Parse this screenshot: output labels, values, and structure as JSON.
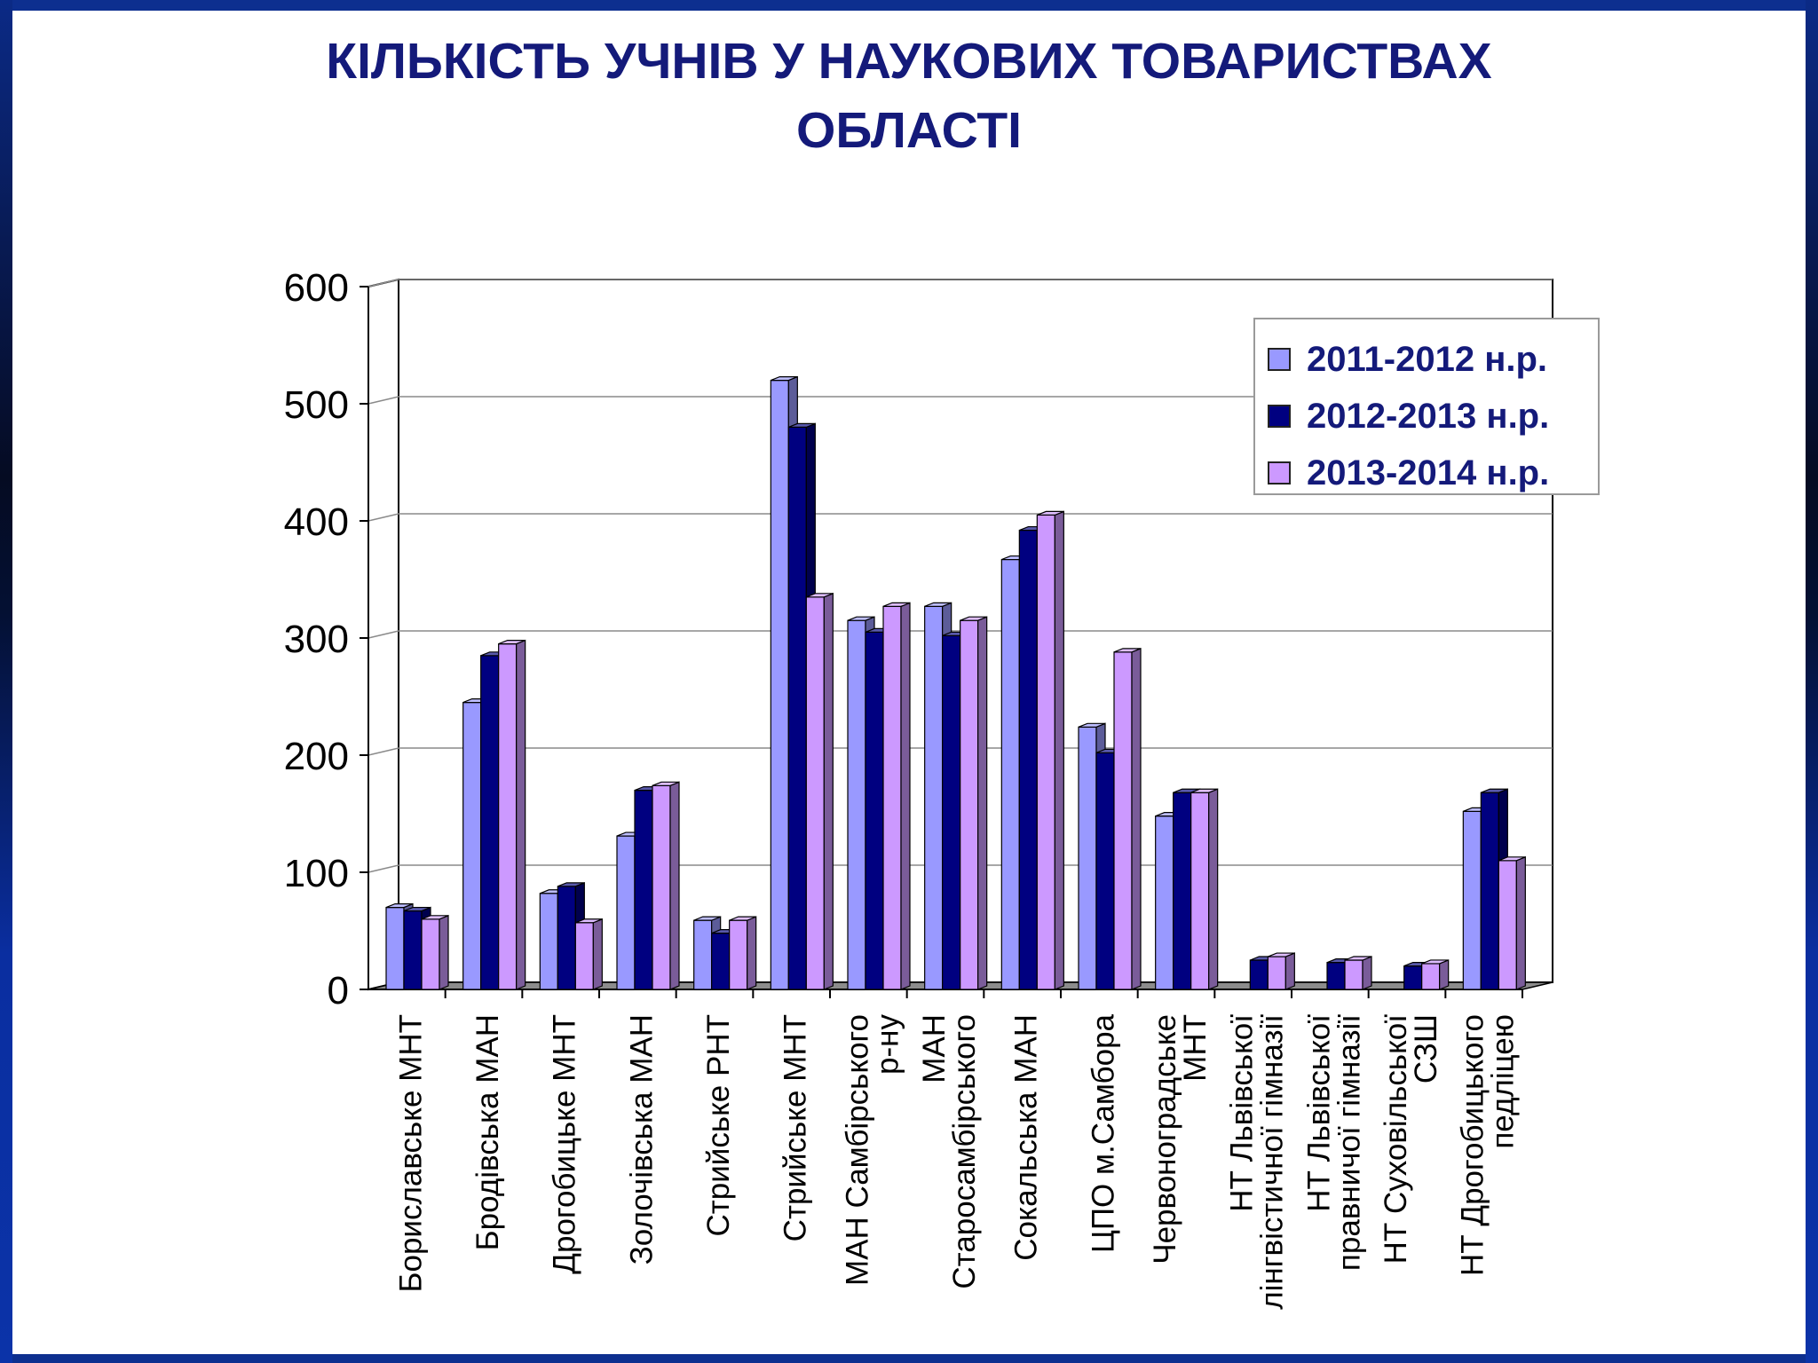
{
  "slide": {
    "title_line1": "КІЛЬКІСТЬ УЧНІВ У НАУКОВИХ ТОВАРИСТВАХ",
    "title_line2": "ОБЛАСТІ"
  },
  "colors": {
    "background_border": "#0d2f8f",
    "title": "#141a7a",
    "legend_text": "#141a7a"
  },
  "chart_data": {
    "type": "bar",
    "style": "3d-clustered-column",
    "title": "",
    "xlabel": "",
    "ylabel": "",
    "ylim": [
      0,
      600
    ],
    "yticks": [
      "0",
      "100",
      "200",
      "300",
      "400",
      "500",
      "600"
    ],
    "grid": true,
    "legend_position": "top-right",
    "categories": [
      [
        "Бориславське МНТ"
      ],
      [
        "Бродівська МАН"
      ],
      [
        "Дрогобицьке МНТ"
      ],
      [
        "Золочівська МАН"
      ],
      [
        "Стрийське РНТ"
      ],
      [
        "Стрийське МНТ"
      ],
      [
        "МАН Самбірського",
        "р-ну"
      ],
      [
        "МАН",
        "Старосамбірського"
      ],
      [
        "Сокальська  МАН"
      ],
      [
        "ЦПО м.Самбора"
      ],
      [
        "Червоноградське",
        "МНТ"
      ],
      [
        "НТ Львівської",
        "лінгвістичної гімназії"
      ],
      [
        "НТ Львівської",
        "правничої гімназії"
      ],
      [
        "НТ Суховільської",
        "СЗШ"
      ],
      [
        "НТ Дрогобицького",
        "педліцею"
      ]
    ],
    "series": [
      {
        "name": "2011-2012 н.р.",
        "color": "#9999ff",
        "values": [
          70,
          245,
          82,
          131,
          59,
          520,
          315,
          327,
          367,
          224,
          148,
          0,
          0,
          0,
          152
        ]
      },
      {
        "name": "2012-2013 н.р.",
        "color": "#000080",
        "values": [
          67,
          285,
          88,
          170,
          48,
          480,
          305,
          302,
          392,
          202,
          168,
          25,
          23,
          20,
          168
        ]
      },
      {
        "name": "2013-2014 н.р.",
        "color": "#cc99ff",
        "values": [
          60,
          295,
          57,
          174,
          59,
          335,
          327,
          315,
          405,
          288,
          168,
          28,
          25,
          22,
          110
        ]
      }
    ]
  }
}
